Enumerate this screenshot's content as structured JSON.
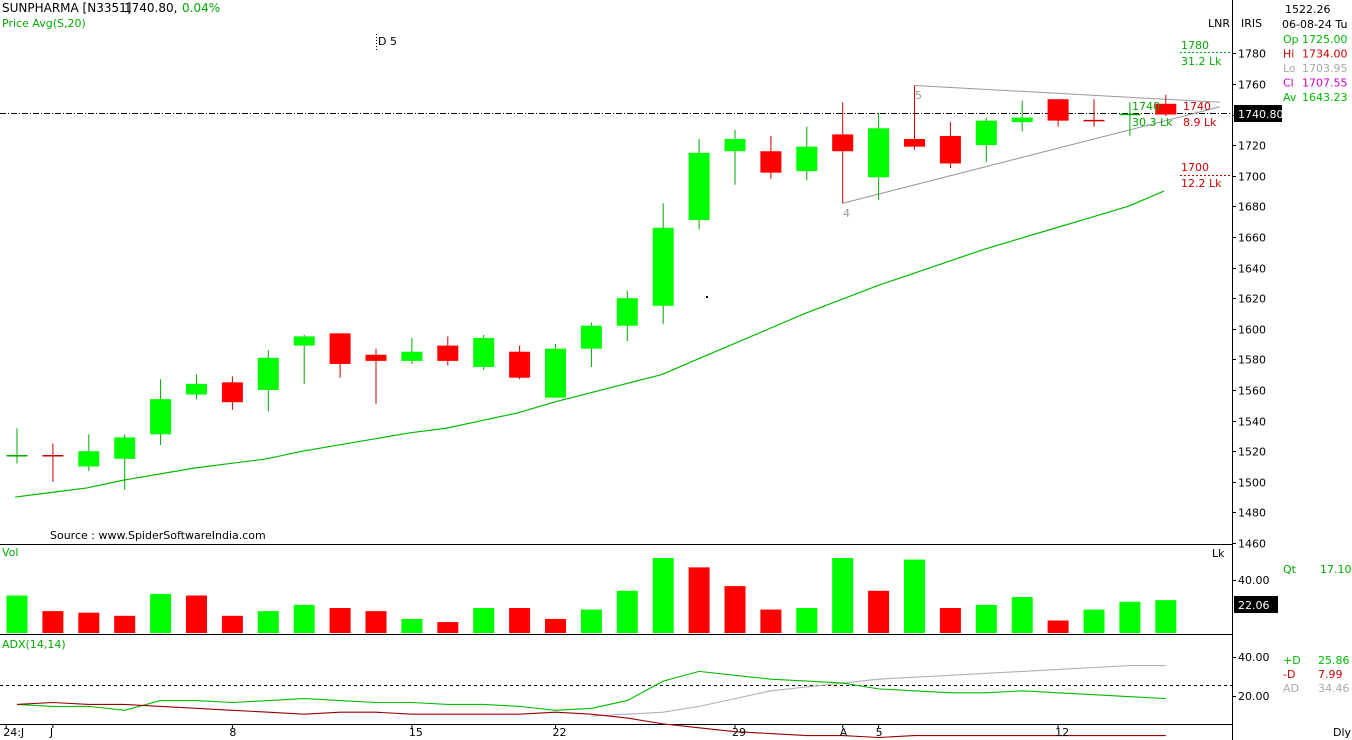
{
  "header": {
    "symbol": "SUNPHARMA [N3351]",
    "last": "1740.80,",
    "change": "0.04%",
    "indicator": "Price  Avg(S,20)",
    "drawing_label": "D 5",
    "source": "Source : www.SpiderSoftwareIndia.com",
    "lnr": "LNR",
    "iris": "IRIS"
  },
  "info_panel": {
    "value_top": "1522.26",
    "date": "06-08-24 Tu",
    "rows": [
      {
        "label": "Op",
        "value": "1725.00",
        "color": "#00bb00"
      },
      {
        "label": "Hi",
        "value": "1734.00",
        "color": "#cc0000"
      },
      {
        "label": "Lo",
        "value": "1703.95",
        "color": "#aaaaaa"
      },
      {
        "label": "Cl",
        "value": "1707.55",
        "color": "#cc00cc"
      },
      {
        "label": "Av",
        "value": "1643.23",
        "color": "#00bb00"
      }
    ]
  },
  "annotations": {
    "level_1780": "1780",
    "vol_1780": "31.2 Lk",
    "level_1740_left": "1740",
    "vol_1740_left": "30.3 Lk",
    "level_1740_right": "1740",
    "vol_1740_right": "8.9 Lk",
    "level_1700": "1700",
    "vol_1700": "12.2 Lk",
    "pivot_4": "4",
    "pivot_5": "5",
    "price_box": "1740.80",
    "volume_box": "22.06"
  },
  "volume_panel": {
    "label": "Vol",
    "unit": "Lk",
    "tick": "40.00",
    "qt_label": "Qt",
    "qt_value": "17.10"
  },
  "adx_panel": {
    "label": "ADX(14,14)",
    "ticks": [
      "40.00",
      "20.00"
    ],
    "rows": [
      {
        "label": "+D",
        "value": "25.86",
        "color": "#00bb00"
      },
      {
        "label": "-D",
        "value": "7.99",
        "color": "#cc0000"
      },
      {
        "label": "AD",
        "value": "34.46",
        "color": "#aaaaaa"
      }
    ]
  },
  "x_axis": {
    "labels": [
      {
        "text": "24:J",
        "index": -0.3
      },
      {
        "text": "J",
        "index": 1
      },
      {
        "text": "8",
        "index": 6
      },
      {
        "text": "15",
        "index": 11
      },
      {
        "text": "22",
        "index": 15
      },
      {
        "text": "29",
        "index": 20
      },
      {
        "text": "A",
        "index": 23
      },
      {
        "text": "5",
        "index": 24
      },
      {
        "text": "12",
        "index": 29
      }
    ],
    "period": "Dly"
  },
  "colors": {
    "up": "#00ff00",
    "down": "#ff0000",
    "candle_line_up": "#00aa00",
    "candle_line_down": "#cc0000",
    "ma": "#00bb00",
    "plus_di": "#00bb00",
    "minus_di": "#990000",
    "adx": "#b0b0b0"
  },
  "chart_data": {
    "type": "candlestick",
    "ylim": [
      1460,
      1790
    ],
    "y_ticks": [
      1460,
      1480,
      1500,
      1520,
      1540,
      1560,
      1580,
      1600,
      1620,
      1640,
      1660,
      1680,
      1700,
      1720,
      1740,
      1760,
      1780
    ],
    "reference_price": 1740.8,
    "candles": [
      {
        "o": 1516,
        "h": 1535,
        "l": 1512,
        "c": 1517
      },
      {
        "o": 1517,
        "h": 1525,
        "l": 1500,
        "c": 1516
      },
      {
        "o": 1510,
        "h": 1531,
        "l": 1507,
        "c": 1520
      },
      {
        "o": 1515,
        "h": 1531,
        "l": 1495,
        "c": 1529
      },
      {
        "o": 1531,
        "h": 1567,
        "l": 1524,
        "c": 1554
      },
      {
        "o": 1557,
        "h": 1570,
        "l": 1554,
        "c": 1564
      },
      {
        "o": 1565,
        "h": 1569,
        "l": 1547,
        "c": 1552
      },
      {
        "o": 1560,
        "h": 1586,
        "l": 1546,
        "c": 1581
      },
      {
        "o": 1589,
        "h": 1596,
        "l": 1564,
        "c": 1595
      },
      {
        "o": 1597,
        "h": 1597,
        "l": 1568,
        "c": 1577
      },
      {
        "o": 1583,
        "h": 1587,
        "l": 1551,
        "c": 1579
      },
      {
        "o": 1579,
        "h": 1594,
        "l": 1577,
        "c": 1585
      },
      {
        "o": 1589,
        "h": 1595,
        "l": 1576,
        "c": 1579
      },
      {
        "o": 1575,
        "h": 1596,
        "l": 1573,
        "c": 1594
      },
      {
        "o": 1585,
        "h": 1589,
        "l": 1567,
        "c": 1568
      },
      {
        "o": 1555,
        "h": 1590,
        "l": 1555,
        "c": 1587
      },
      {
        "o": 1587,
        "h": 1604,
        "l": 1575,
        "c": 1602
      },
      {
        "o": 1602,
        "h": 1625,
        "l": 1592,
        "c": 1620
      },
      {
        "o": 1615,
        "h": 1682,
        "l": 1603,
        "c": 1666
      },
      {
        "o": 1671,
        "h": 1724,
        "l": 1665,
        "c": 1715
      },
      {
        "o": 1716,
        "h": 1730,
        "l": 1694,
        "c": 1724
      },
      {
        "o": 1716,
        "h": 1726,
        "l": 1698,
        "c": 1702
      },
      {
        "o": 1703,
        "h": 1732,
        "l": 1697,
        "c": 1719
      },
      {
        "o": 1727,
        "h": 1748,
        "l": 1682,
        "c": 1716
      },
      {
        "o": 1699,
        "h": 1741,
        "l": 1684,
        "c": 1731
      },
      {
        "o": 1724,
        "h": 1759,
        "l": 1717,
        "c": 1719
      },
      {
        "o": 1726,
        "h": 1735,
        "l": 1705,
        "c": 1708
      },
      {
        "o": 1720,
        "h": 1738,
        "l": 1709,
        "c": 1736
      },
      {
        "o": 1735,
        "h": 1749,
        "l": 1729,
        "c": 1738
      },
      {
        "o": 1750,
        "h": 1750,
        "l": 1732,
        "c": 1736
      },
      {
        "o": 1736,
        "h": 1750,
        "l": 1732,
        "c": 1735
      },
      {
        "o": 1740,
        "h": 1748,
        "l": 1726,
        "c": 1740
      },
      {
        "o": 1747,
        "h": 1753,
        "l": 1739,
        "c": 1740
      }
    ],
    "moving_average_20": [
      1490,
      1493,
      1496,
      1501,
      1505,
      1509,
      1512,
      1515,
      1520,
      1524,
      1528,
      1532,
      1535,
      1540,
      1545,
      1552,
      1558,
      1564,
      1570,
      1580,
      1590,
      1600,
      1610,
      1619,
      1628,
      1636,
      1644,
      1652,
      1659,
      1666,
      1673,
      1680,
      1690
    ],
    "volume": {
      "ylim": [
        0,
        48
      ],
      "values": [
        24,
        14,
        13,
        11,
        25,
        24,
        11,
        14,
        18,
        16,
        14,
        9,
        7,
        16,
        16,
        9,
        15,
        27,
        48,
        42,
        30,
        15,
        16,
        48,
        27,
        47,
        16,
        18,
        23,
        8,
        15,
        20,
        21
      ],
      "up": [
        true,
        false,
        false,
        false,
        true,
        false,
        false,
        true,
        true,
        false,
        false,
        true,
        false,
        true,
        false,
        false,
        true,
        true,
        true,
        false,
        false,
        false,
        true,
        true,
        false,
        true,
        false,
        true,
        true,
        false,
        true,
        true,
        true
      ]
    },
    "adx": {
      "ylim": [
        10,
        46
      ],
      "plus_di": [
        18,
        17,
        17,
        15,
        20,
        20,
        19,
        20,
        21,
        20,
        19,
        19,
        18,
        18,
        17,
        15,
        16,
        20,
        30,
        35,
        33,
        31,
        30,
        29,
        26,
        25,
        24,
        24,
        25,
        24,
        23,
        22,
        21
      ],
      "minus_di": [
        18,
        19,
        18,
        18,
        17,
        16,
        15,
        14,
        13,
        14,
        14,
        13,
        13,
        13,
        13,
        14,
        13,
        11,
        8,
        6,
        4,
        3,
        2,
        2,
        1,
        2,
        2,
        2,
        2,
        2,
        2,
        2,
        2
      ],
      "adx_line": [
        null,
        null,
        null,
        null,
        null,
        null,
        null,
        null,
        null,
        null,
        null,
        null,
        null,
        null,
        null,
        null,
        12,
        13,
        14,
        17,
        21,
        25,
        27,
        29,
        31,
        32,
        33,
        34,
        35,
        36,
        37,
        38,
        38
      ]
    }
  }
}
